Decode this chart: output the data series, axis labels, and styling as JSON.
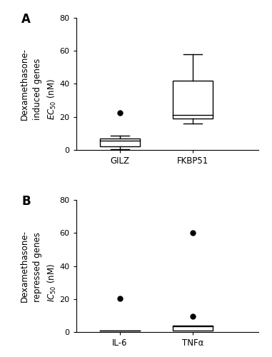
{
  "panel_A": {
    "title": "A",
    "ylabel_line1": "Dexamethasone-",
    "ylabel_line2": "induced genes",
    "ylabel_line3": "EC50 (nM)",
    "ylim": [
      0,
      80
    ],
    "yticks": [
      0,
      20,
      40,
      60,
      80
    ],
    "categories": [
      "GILZ",
      "FKBP51"
    ],
    "boxes": [
      {
        "label": "GILZ",
        "q1": 2.0,
        "median": 5.5,
        "q3": 7.0,
        "whisker_low": 0.5,
        "whisker_high": 8.5,
        "outliers": [
          22.5
        ]
      },
      {
        "label": "FKBP51",
        "q1": 19.0,
        "median": 21.0,
        "q3": 42.0,
        "whisker_low": 16.0,
        "whisker_high": 58.0,
        "outliers": []
      }
    ]
  },
  "panel_B": {
    "title": "B",
    "ylabel_line1": "Dexamethasone-",
    "ylabel_line2": "repressed genes",
    "ylabel_line3": "IC50 (nM)",
    "ylim": [
      0,
      80
    ],
    "yticks": [
      0,
      20,
      40,
      60,
      80
    ],
    "categories": [
      "IL-6",
      "TNFα"
    ],
    "boxes": [
      {
        "label": "IL-6",
        "q1": 1.0,
        "median": 1.0,
        "q3": 1.0,
        "whisker_low": 1.0,
        "whisker_high": 1.0,
        "outliers": [
          20.5
        ]
      },
      {
        "label": "TNFα",
        "q1": 1.0,
        "median": 3.5,
        "q3": 4.0,
        "whisker_low": 1.0,
        "whisker_high": 4.0,
        "outliers": [
          9.5,
          60.0
        ]
      }
    ]
  },
  "box_width": 0.55,
  "box_color": "white",
  "box_edgecolor": "black",
  "outlier_color": "black",
  "outlier_size": 6,
  "linewidth": 1.0,
  "background_color": "white",
  "label_fontsize": 8.5,
  "tick_fontsize": 8,
  "panel_label_fontsize": 12,
  "x_positions": [
    1,
    2
  ],
  "xlim": [
    0.4,
    2.9
  ]
}
